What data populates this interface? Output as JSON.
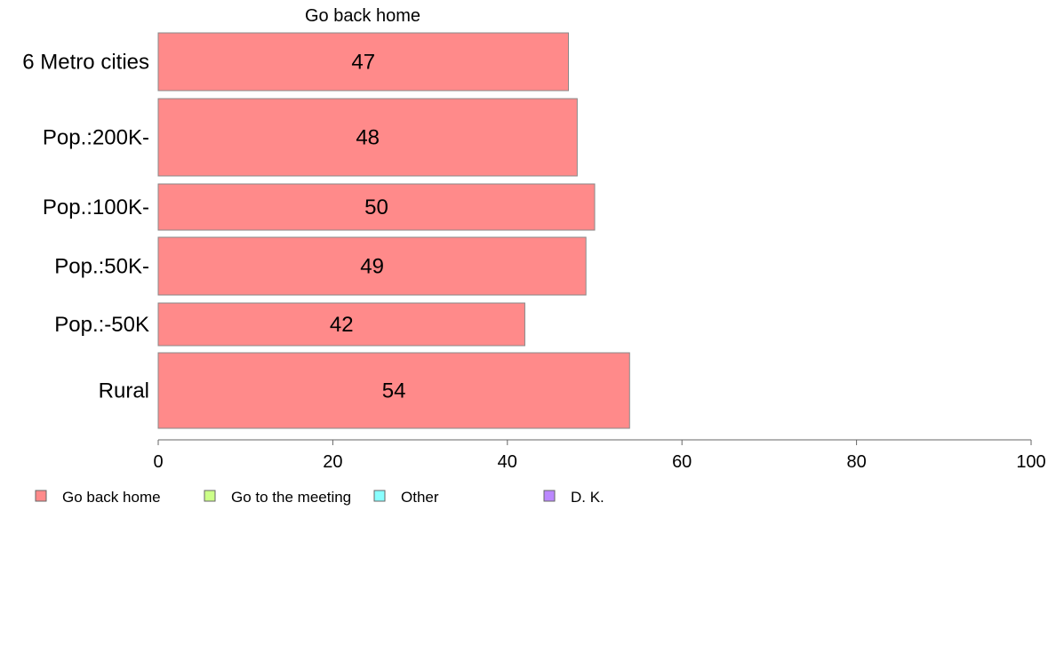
{
  "chart_data": {
    "type": "bar",
    "orientation": "horizontal",
    "stacked": true,
    "series_title": "Go back home",
    "categories": [
      "6 Metro cities",
      "Pop.:200K-",
      "Pop.:100K-",
      "Pop.:50K-",
      "Pop.:-50K",
      "Rural"
    ],
    "series": [
      {
        "name": "Go back home",
        "color": "#ff8a8a",
        "values": [
          47,
          48,
          50,
          49,
          42,
          54
        ]
      }
    ],
    "data_labels": [
      "47",
      "48",
      "50",
      "49",
      "42",
      "54"
    ],
    "xlim": [
      0,
      100
    ],
    "xticks": [
      0,
      20,
      40,
      60,
      80,
      100
    ],
    "xtick_labels": [
      "0",
      "20",
      "40",
      "60",
      "80",
      "100"
    ],
    "xlabel": "",
    "ylabel": "",
    "grid": false,
    "legend": {
      "position": "bottom",
      "entries": [
        {
          "name": "Go back home",
          "color": "#ff8a8a"
        },
        {
          "name": "Go to the meeting",
          "color": "#ccff88"
        },
        {
          "name": "Other",
          "color": "#88ffff"
        },
        {
          "name": "D. K.",
          "color": "#bb88ff"
        }
      ]
    }
  }
}
